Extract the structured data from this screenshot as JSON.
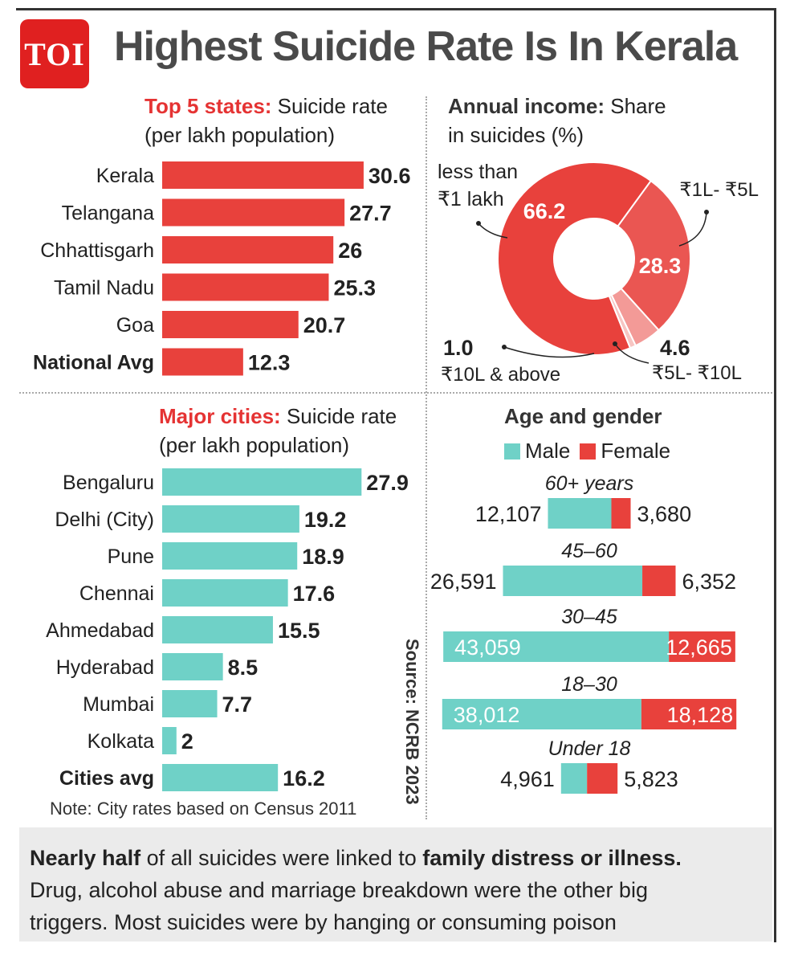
{
  "logo": "TOI",
  "title": "Highest Suicide Rate Is In Kerala",
  "chart_data": [
    {
      "type": "bar",
      "orientation": "horizontal",
      "title_highlight": "Top 5 states:",
      "title_rest": " Suicide rate",
      "subtitle": "(per lakh population)",
      "categories": [
        "Kerala",
        "Telangana",
        "Chhattisgarh",
        "Tamil Nadu",
        "Goa",
        "National Avg"
      ],
      "values": [
        30.6,
        27.7,
        26,
        25.3,
        20.7,
        12.3
      ],
      "labels": [
        "30.6",
        "27.7",
        "26",
        "25.3",
        "20.7",
        "12.3"
      ],
      "bold_categories": [
        "National Avg"
      ],
      "color": "#e8413c"
    },
    {
      "type": "pie",
      "style": "donut",
      "title_highlight": "Annual income:",
      "title_rest": " Share",
      "subtitle": "in suicides (%)",
      "slices": [
        {
          "name": "less than ₹1 lakh",
          "value": 66.2,
          "label": "66.2",
          "color": "#e8413c"
        },
        {
          "name": "₹1L- ₹5L",
          "value": 28.3,
          "label": "28.3",
          "color": "#ea5652"
        },
        {
          "name": "₹5L- ₹10L",
          "value": 4.6,
          "label": "4.6",
          "color": "#f39a97"
        },
        {
          "name": "₹10L & above",
          "value": 1.0,
          "label": "1.0",
          "color": "#f7c5c2"
        }
      ]
    },
    {
      "type": "bar",
      "orientation": "horizontal",
      "title_highlight": "Major cities:",
      "title_rest": " Suicide rate",
      "subtitle": "(per lakh population)",
      "categories": [
        "Bengaluru",
        "Delhi (City)",
        "Pune",
        "Chennai",
        "Ahmedabad",
        "Hyderabad",
        "Mumbai",
        "Kolkata",
        "Cities avg"
      ],
      "values": [
        27.9,
        19.2,
        18.9,
        17.6,
        15.5,
        8.5,
        7.7,
        2,
        16.2
      ],
      "labels": [
        "27.9",
        "19.2",
        "18.9",
        "17.6",
        "15.5",
        "8.5",
        "7.7",
        "2",
        "16.2"
      ],
      "bold_categories": [
        "Cities avg"
      ],
      "color": "#6fd1c7"
    },
    {
      "type": "bar",
      "orientation": "horizontal",
      "stacked": true,
      "title": "Age and gender",
      "categories": [
        "60+ years",
        "45–60",
        "30–45",
        "18–30",
        "Under 18"
      ],
      "series": [
        {
          "name": "Male",
          "values": [
            12107,
            26591,
            43059,
            38012,
            4961
          ],
          "labels": [
            "12,107",
            "26,591",
            "43,059",
            "38,012",
            "4,961"
          ],
          "color": "#6fd1c7"
        },
        {
          "name": "Female",
          "values": [
            3680,
            6352,
            12665,
            18128,
            5823
          ],
          "labels": [
            "3,680",
            "6,352",
            "12,665",
            "18,128",
            "5,823"
          ],
          "color": "#e8413c"
        }
      ]
    }
  ],
  "source": "Source: NCRB 2023",
  "note": "Note: City rates based on Census 2011",
  "footer": {
    "b1": "Nearly half",
    "t1": " of all suicides were linked to ",
    "b2": "family distress or illness.",
    "line2": "Drug, alcohol abuse and marriage breakdown were the other big",
    "line3": "triggers. Most suicides were by hanging or consuming poison"
  }
}
